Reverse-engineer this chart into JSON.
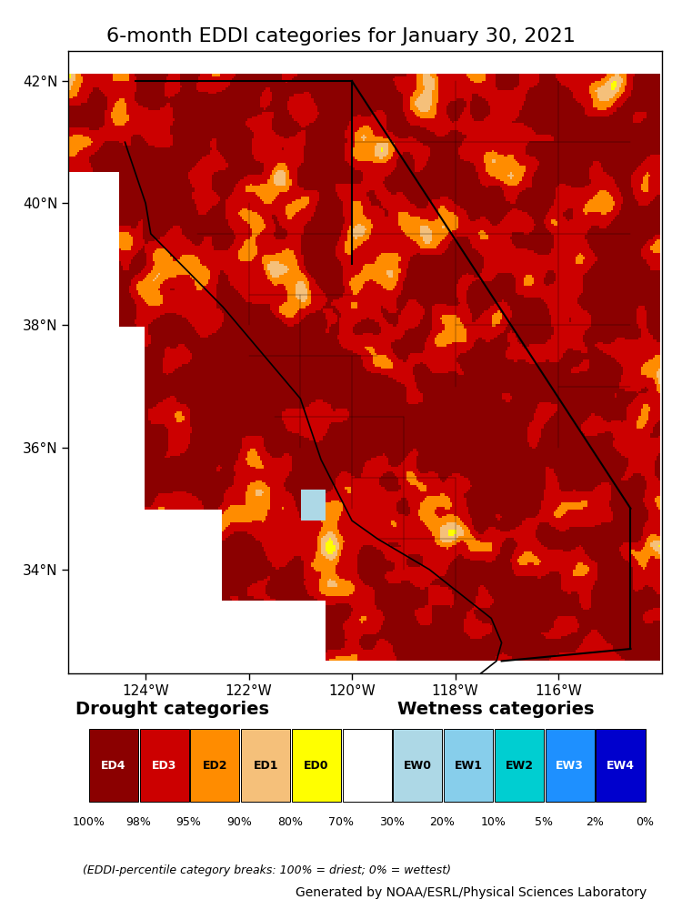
{
  "title": "6-month EDDI categories for January 30, 2021",
  "title_fontsize": 16,
  "map_xlim": [
    -125.5,
    -114.0
  ],
  "map_ylim": [
    32.3,
    42.5
  ],
  "xticks": [
    -124,
    -122,
    -120,
    -118,
    -116
  ],
  "yticks": [
    34,
    36,
    38,
    40,
    42
  ],
  "xlabel_labels": [
    "124°W",
    "122°W",
    "120°W",
    "118°W",
    "116°W"
  ],
  "ylabel_labels": [
    "34°N",
    "36°N",
    "38°N",
    "40°N",
    "42°N"
  ],
  "drought_label": "Drought categories",
  "wetness_label": "Wetness categories",
  "category_labels": [
    "ED4",
    "ED3",
    "ED2",
    "ED1",
    "ED0",
    "",
    "EW0",
    "EW1",
    "EW2",
    "EW3",
    "EW4"
  ],
  "category_colors": [
    "#8B0000",
    "#CC0000",
    "#FF8C00",
    "#F5C07A",
    "#FFFF00",
    "#FFFFFF",
    "#ADD8E6",
    "#87CEEB",
    "#00CED1",
    "#1E90FF",
    "#0000CD"
  ],
  "pct_labels": [
    "100%",
    "98%",
    "95%",
    "90%",
    "80%",
    "70%",
    "30%",
    "20%",
    "10%",
    "5%",
    "2%",
    "0%"
  ],
  "footnote1": "(EDDI-percentile category breaks: 100% = driest; 0% = wettest)",
  "footnote2": "Generated by NOAA/ESRL/Physical Sciences Laboratory",
  "background_color": "#FFFFFF",
  "eddi_colors": [
    "#8B0000",
    "#CC0000",
    "#FF8C00",
    "#F5C07A",
    "#FFFF00",
    "#FFFFFF",
    "#ADD8E6",
    "#87CEEB",
    "#00CED1",
    "#1E90FF",
    "#0000CD"
  ],
  "noise_seed": 42,
  "thresholds": [
    0.52,
    0.68,
    0.78,
    0.85,
    0.9,
    0.92,
    0.95,
    0.97,
    0.985,
    0.995
  ]
}
